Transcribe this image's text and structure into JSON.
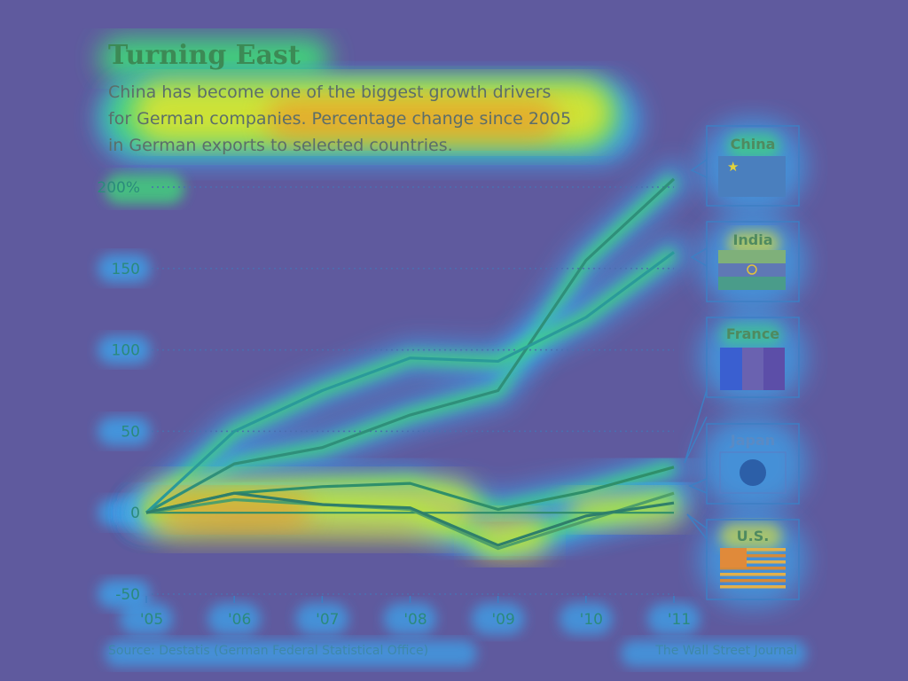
{
  "colors": {
    "background": "#5f5a9e",
    "heat_hot": "#f28c28",
    "heat_warm": "#e6e62a",
    "heat_mid": "#41d67a",
    "heat_cool": "#3aa7f0",
    "line": "#27a28a"
  },
  "header": {
    "title": "Turning East",
    "subtitle_lines": [
      "China has become one of the biggest growth drivers",
      "for German companies. Percentage change since 2005",
      "in German exports to selected countries."
    ]
  },
  "footer": {
    "source": "Source: Destatis (German Federal Statistical Office)",
    "credit": "The Wall Street Journal"
  },
  "legend": [
    {
      "label": "China",
      "flag": "china-flag-icon"
    },
    {
      "label": "India",
      "flag": "india-flag-icon"
    },
    {
      "label": "France",
      "flag": "france-flag-icon"
    },
    {
      "label": "Japan",
      "flag": "japan-flag-icon"
    },
    {
      "label": "U.S.",
      "flag": "us-flag-icon"
    }
  ],
  "chart_data": {
    "type": "line",
    "title": "Turning East",
    "x": [
      "'05",
      "'06",
      "'07",
      "'08",
      "'09",
      "'10",
      "'11"
    ],
    "ylim": [
      -50,
      200
    ],
    "yticks": [
      {
        "value": 200,
        "label": "200%"
      },
      {
        "value": 150,
        "label": "150"
      },
      {
        "value": 100,
        "label": "100"
      },
      {
        "value": 50,
        "label": "50"
      },
      {
        "value": 0,
        "label": "0"
      },
      {
        "value": -50,
        "label": "-50"
      }
    ],
    "grid": "horizontal dotted",
    "legend_placement": "right",
    "overlay": "attention heatmap",
    "series": [
      {
        "name": "China",
        "values": [
          0,
          30,
          40,
          60,
          75,
          155,
          205
        ]
      },
      {
        "name": "India",
        "values": [
          0,
          50,
          75,
          95,
          93,
          120,
          160
        ]
      },
      {
        "name": "France",
        "values": [
          0,
          12,
          16,
          18,
          2,
          13,
          28
        ]
      },
      {
        "name": "Japan",
        "values": [
          0,
          8,
          5,
          2,
          -22,
          -5,
          12
        ]
      },
      {
        "name": "U.S.",
        "values": [
          0,
          12,
          5,
          3,
          -20,
          -2,
          6
        ]
      }
    ]
  }
}
